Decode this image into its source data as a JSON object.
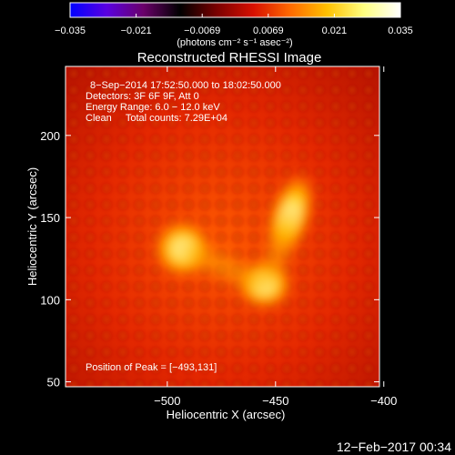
{
  "chart_data": {
    "type": "heatmap",
    "title": "Reconstructed RHESSI Image",
    "xlabel": "Heliocentric X (arcsec)",
    "ylabel": "Heliocentric Y (arcsec)",
    "xlim": [
      -547,
      -402
    ],
    "ylim": [
      47,
      242
    ],
    "x_ticks": [
      {
        "value": -500,
        "label": "−500"
      },
      {
        "value": -450,
        "label": "−450"
      },
      {
        "value": -400,
        "label": "−400"
      }
    ],
    "y_ticks": [
      {
        "value": 50,
        "label": "50"
      },
      {
        "value": 100,
        "label": "100"
      },
      {
        "value": 150,
        "label": "150"
      },
      {
        "value": 200,
        "label": "200"
      }
    ],
    "colorbar": {
      "min": -0.035,
      "max": 0.035,
      "tick_labels": [
        "−0.035",
        "−0.021",
        "−0.0069",
        "0.0069",
        "0.021",
        "0.035"
      ],
      "unit_label": "(photons cm⁻² s⁻¹ asec⁻²)",
      "colors": [
        "#0000ff",
        "#5a00e0",
        "#6a006a",
        "#000000",
        "#7a0000",
        "#d81000",
        "#ff6a00",
        "#ffc000",
        "#ffff80",
        "#ffffff"
      ]
    },
    "annotations": [
      "8−Sep−2014 17:52:50.000 to 18:02:50.000",
      "Detectors: 3F 6F 9F, Att 0",
      "Energy Range: 6.0 − 12.0 keV",
      "Clean     Total counts: 7.29E+04"
    ],
    "peak_label": "Position of Peak = [−493,131]",
    "sources": [
      {
        "x": -493,
        "y": 131,
        "intensity": 0.035
      },
      {
        "x": -443,
        "y": 152,
        "intensity": 0.031
      },
      {
        "x": -455,
        "y": 109,
        "intensity": 0.028
      }
    ]
  },
  "footer": {
    "timestamp": "12−Feb−2017 00:34"
  }
}
